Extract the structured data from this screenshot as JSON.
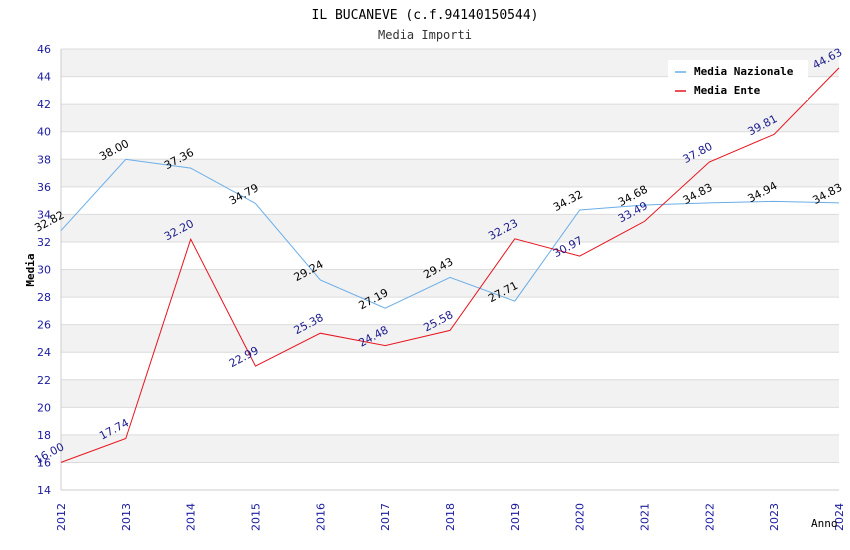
{
  "chart_data": {
    "type": "line",
    "title": "IL BUCANEVE (c.f.94140150544)",
    "subtitle": "Media Importi",
    "ylabel": "Media",
    "xlabel": "Anno",
    "ylim": [
      14,
      46
    ],
    "yticks": [
      14,
      16,
      18,
      20,
      22,
      24,
      26,
      28,
      30,
      32,
      34,
      36,
      38,
      40,
      42,
      44,
      46
    ],
    "x": [
      "2012",
      "2013",
      "2014",
      "2015",
      "2016",
      "2017",
      "2018",
      "2019",
      "2020",
      "2021",
      "2022",
      "2023",
      "2024"
    ],
    "series": [
      {
        "name": "Media Nazionale",
        "color": "#6aaee8",
        "label_color": "#000000",
        "values": [
          32.82,
          38.0,
          37.36,
          34.79,
          29.24,
          27.19,
          29.43,
          27.71,
          34.32,
          34.68,
          34.83,
          34.94,
          34.83
        ],
        "labels": [
          "32.82",
          "38.00",
          "37.36",
          "34.79",
          "29.24",
          "27.19",
          "29.43",
          "27.71",
          "34.32",
          "34.68",
          "34.83",
          "34.94",
          "34.83"
        ]
      },
      {
        "name": "Media Ente",
        "color": "#e8141e",
        "label_color": "#1a1a8c",
        "values": [
          16.0,
          17.74,
          32.2,
          22.99,
          25.38,
          24.48,
          25.58,
          32.23,
          30.97,
          33.49,
          37.8,
          39.81,
          44.63
        ],
        "labels": [
          "16.00",
          "17.74",
          "32.20",
          "22.99",
          "25.38",
          "24.48",
          "25.58",
          "32.23",
          "30.97",
          "33.49",
          "37.80",
          "39.81",
          "44.63"
        ]
      }
    ],
    "grid": true,
    "legend_position": "top-right"
  }
}
